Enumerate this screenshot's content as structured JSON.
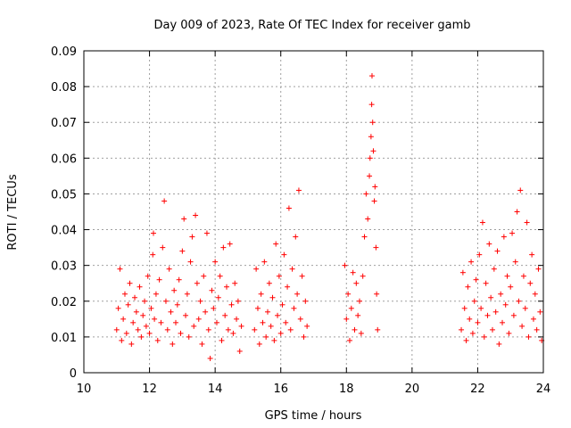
{
  "chart_data": {
    "type": "scatter",
    "title": "Day 009 of 2023, Rate Of TEC Index for receiver gamb",
    "xlabel": "GPS time / hours",
    "ylabel": "ROTI / TECUs",
    "xlim": [
      10,
      24
    ],
    "ylim": [
      0,
      0.09
    ],
    "x_ticks": [
      10,
      12,
      14,
      16,
      18,
      20,
      22,
      24
    ],
    "x_tick_labels": [
      "10",
      "12",
      "14",
      "16",
      "18",
      "20",
      "22",
      "24"
    ],
    "y_ticks": [
      0,
      0.01,
      0.02,
      0.03,
      0.04,
      0.05,
      0.06,
      0.07,
      0.08,
      0.09
    ],
    "y_tick_labels": [
      "0",
      "0.01",
      "0.02",
      "0.03",
      "0.04",
      "0.05",
      "0.06",
      "0.07",
      "0.08",
      "0.09"
    ],
    "grid": true,
    "marker": "+",
    "color": "#ff0000",
    "series": [
      {
        "name": "ROTI",
        "points": [
          [
            11.0,
            0.012
          ],
          [
            11.05,
            0.018
          ],
          [
            11.1,
            0.029
          ],
          [
            11.15,
            0.009
          ],
          [
            11.2,
            0.015
          ],
          [
            11.25,
            0.022
          ],
          [
            11.3,
            0.011
          ],
          [
            11.35,
            0.019
          ],
          [
            11.4,
            0.025
          ],
          [
            11.45,
            0.008
          ],
          [
            11.5,
            0.014
          ],
          [
            11.55,
            0.021
          ],
          [
            11.6,
            0.017
          ],
          [
            11.65,
            0.012
          ],
          [
            11.7,
            0.024
          ],
          [
            11.75,
            0.01
          ],
          [
            11.8,
            0.016
          ],
          [
            11.85,
            0.02
          ],
          [
            11.9,
            0.013
          ],
          [
            11.95,
            0.027
          ],
          [
            12.0,
            0.011
          ],
          [
            12.05,
            0.018
          ],
          [
            12.1,
            0.033
          ],
          [
            12.12,
            0.039
          ],
          [
            12.15,
            0.015
          ],
          [
            12.2,
            0.022
          ],
          [
            12.25,
            0.009
          ],
          [
            12.3,
            0.026
          ],
          [
            12.35,
            0.014
          ],
          [
            12.4,
            0.035
          ],
          [
            12.45,
            0.048
          ],
          [
            12.5,
            0.02
          ],
          [
            12.55,
            0.012
          ],
          [
            12.6,
            0.029
          ],
          [
            12.65,
            0.017
          ],
          [
            12.7,
            0.008
          ],
          [
            12.75,
            0.023
          ],
          [
            12.8,
            0.014
          ],
          [
            12.85,
            0.019
          ],
          [
            12.9,
            0.026
          ],
          [
            12.95,
            0.011
          ],
          [
            13.0,
            0.034
          ],
          [
            13.05,
            0.043
          ],
          [
            13.1,
            0.016
          ],
          [
            13.15,
            0.022
          ],
          [
            13.2,
            0.01
          ],
          [
            13.25,
            0.031
          ],
          [
            13.3,
            0.038
          ],
          [
            13.35,
            0.013
          ],
          [
            13.4,
            0.044
          ],
          [
            13.45,
            0.025
          ],
          [
            13.5,
            0.015
          ],
          [
            13.55,
            0.02
          ],
          [
            13.6,
            0.008
          ],
          [
            13.65,
            0.027
          ],
          [
            13.7,
            0.017
          ],
          [
            13.75,
            0.039
          ],
          [
            13.8,
            0.012
          ],
          [
            13.85,
            0.004
          ],
          [
            13.9,
            0.023
          ],
          [
            13.95,
            0.018
          ],
          [
            14.0,
            0.031
          ],
          [
            14.05,
            0.014
          ],
          [
            14.1,
            0.021
          ],
          [
            14.15,
            0.027
          ],
          [
            14.2,
            0.009
          ],
          [
            14.25,
            0.035
          ],
          [
            14.3,
            0.016
          ],
          [
            14.35,
            0.024
          ],
          [
            14.4,
            0.012
          ],
          [
            14.45,
            0.036
          ],
          [
            14.5,
            0.019
          ],
          [
            14.55,
            0.011
          ],
          [
            14.6,
            0.025
          ],
          [
            14.65,
            0.015
          ],
          [
            14.7,
            0.02
          ],
          [
            14.75,
            0.006
          ],
          [
            14.8,
            0.013
          ],
          [
            15.2,
            0.012
          ],
          [
            15.25,
            0.029
          ],
          [
            15.3,
            0.018
          ],
          [
            15.35,
            0.008
          ],
          [
            15.4,
            0.022
          ],
          [
            15.45,
            0.014
          ],
          [
            15.5,
            0.031
          ],
          [
            15.55,
            0.01
          ],
          [
            15.6,
            0.017
          ],
          [
            15.65,
            0.025
          ],
          [
            15.7,
            0.013
          ],
          [
            15.75,
            0.021
          ],
          [
            15.8,
            0.009
          ],
          [
            15.85,
            0.036
          ],
          [
            15.9,
            0.016
          ],
          [
            15.95,
            0.027
          ],
          [
            16.0,
            0.011
          ],
          [
            16.05,
            0.019
          ],
          [
            16.1,
            0.033
          ],
          [
            16.15,
            0.014
          ],
          [
            16.2,
            0.024
          ],
          [
            16.25,
            0.046
          ],
          [
            16.3,
            0.012
          ],
          [
            16.35,
            0.029
          ],
          [
            16.4,
            0.018
          ],
          [
            16.45,
            0.038
          ],
          [
            16.5,
            0.022
          ],
          [
            16.55,
            0.051
          ],
          [
            16.6,
            0.015
          ],
          [
            16.65,
            0.027
          ],
          [
            16.7,
            0.01
          ],
          [
            16.75,
            0.02
          ],
          [
            16.8,
            0.013
          ],
          [
            17.95,
            0.03
          ],
          [
            18.0,
            0.015
          ],
          [
            18.05,
            0.022
          ],
          [
            18.1,
            0.009
          ],
          [
            18.15,
            0.018
          ],
          [
            18.2,
            0.028
          ],
          [
            18.25,
            0.012
          ],
          [
            18.3,
            0.025
          ],
          [
            18.35,
            0.016
          ],
          [
            18.4,
            0.02
          ],
          [
            18.45,
            0.011
          ],
          [
            18.5,
            0.027
          ],
          [
            18.55,
            0.038
          ],
          [
            18.6,
            0.05
          ],
          [
            18.65,
            0.043
          ],
          [
            18.7,
            0.055
          ],
          [
            18.72,
            0.06
          ],
          [
            18.75,
            0.066
          ],
          [
            18.77,
            0.075
          ],
          [
            18.78,
            0.083
          ],
          [
            18.8,
            0.07
          ],
          [
            18.82,
            0.062
          ],
          [
            18.85,
            0.048
          ],
          [
            18.87,
            0.052
          ],
          [
            18.9,
            0.035
          ],
          [
            18.92,
            0.022
          ],
          [
            18.95,
            0.012
          ],
          [
            21.5,
            0.012
          ],
          [
            21.55,
            0.028
          ],
          [
            21.6,
            0.018
          ],
          [
            21.65,
            0.009
          ],
          [
            21.7,
            0.024
          ],
          [
            21.75,
            0.015
          ],
          [
            21.8,
            0.031
          ],
          [
            21.85,
            0.011
          ],
          [
            21.9,
            0.02
          ],
          [
            21.95,
            0.026
          ],
          [
            22.0,
            0.014
          ],
          [
            22.05,
            0.033
          ],
          [
            22.1,
            0.018
          ],
          [
            22.15,
            0.042
          ],
          [
            22.2,
            0.01
          ],
          [
            22.25,
            0.025
          ],
          [
            22.3,
            0.016
          ],
          [
            22.35,
            0.036
          ],
          [
            22.4,
            0.021
          ],
          [
            22.45,
            0.012
          ],
          [
            22.5,
            0.029
          ],
          [
            22.55,
            0.017
          ],
          [
            22.6,
            0.034
          ],
          [
            22.65,
            0.008
          ],
          [
            22.7,
            0.022
          ],
          [
            22.75,
            0.014
          ],
          [
            22.8,
            0.038
          ],
          [
            22.85,
            0.019
          ],
          [
            22.9,
            0.027
          ],
          [
            22.95,
            0.011
          ],
          [
            23.0,
            0.024
          ],
          [
            23.05,
            0.039
          ],
          [
            23.1,
            0.016
          ],
          [
            23.15,
            0.031
          ],
          [
            23.2,
            0.045
          ],
          [
            23.25,
            0.02
          ],
          [
            23.3,
            0.051
          ],
          [
            23.35,
            0.013
          ],
          [
            23.4,
            0.027
          ],
          [
            23.45,
            0.018
          ],
          [
            23.5,
            0.042
          ],
          [
            23.55,
            0.01
          ],
          [
            23.6,
            0.025
          ],
          [
            23.65,
            0.033
          ],
          [
            23.7,
            0.015
          ],
          [
            23.75,
            0.022
          ],
          [
            23.8,
            0.012
          ],
          [
            23.85,
            0.029
          ],
          [
            23.9,
            0.017
          ],
          [
            23.95,
            0.009
          ]
        ]
      }
    ]
  }
}
